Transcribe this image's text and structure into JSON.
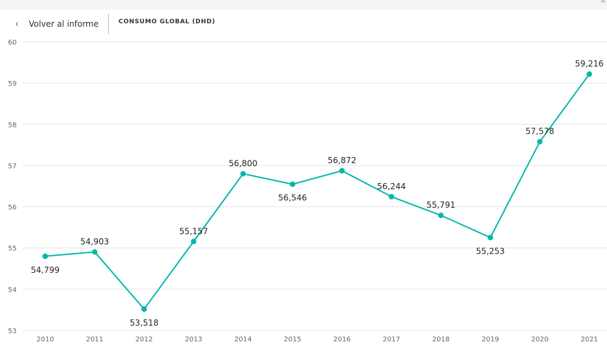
{
  "header": {
    "back_label": "Volver al informe",
    "title": "CONSUMO GLOBAL (DHD)"
  },
  "icons": {
    "back": "chevron-left-icon",
    "menu": "menu-lines-icon"
  },
  "colors": {
    "line": "#01B8AA",
    "grid": "#e6e6e6"
  },
  "chart_data": {
    "type": "line",
    "title": "",
    "xlabel": "",
    "ylabel": "",
    "ylim": [
      53,
      60
    ],
    "yticks": [
      "53",
      "54",
      "55",
      "56",
      "57",
      "58",
      "59",
      "60"
    ],
    "categories": [
      "2010",
      "2011",
      "2012",
      "2013",
      "2014",
      "2015",
      "2016",
      "2017",
      "2018",
      "2019",
      "2020",
      "2021"
    ],
    "series": [
      {
        "values": [
          54.799,
          54.903,
          53.518,
          55.157,
          56.8,
          56.546,
          56.872,
          56.244,
          55.791,
          55.253,
          57.578,
          59.216
        ],
        "labels": [
          "54,799",
          "54,903",
          "53,518",
          "55,157",
          "56,800",
          "56,546",
          "56,872",
          "56,244",
          "55,791",
          "55,253",
          "57,578",
          "59,216"
        ]
      }
    ],
    "grid": true,
    "legend": "none"
  }
}
